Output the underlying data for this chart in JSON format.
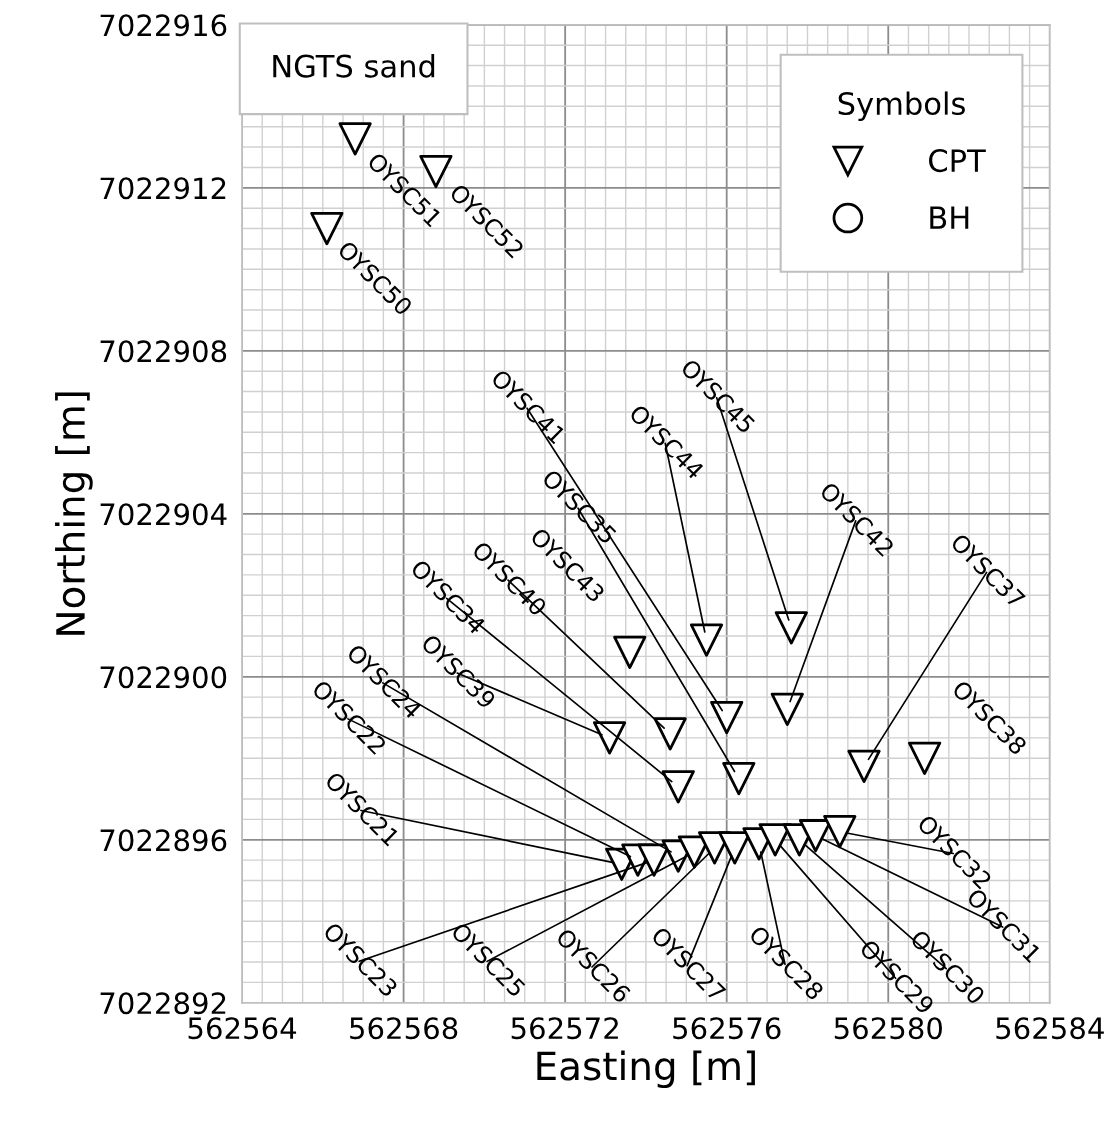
{
  "chart_data": {
    "type": "scatter",
    "xlabel": "Easting [m]",
    "ylabel": "Northing [m]",
    "legend_title": "Symbols",
    "legend": "top right",
    "grid": true,
    "xlim": [
      562564,
      562584
    ],
    "xticks": [
      562564,
      562568,
      562572,
      562576,
      562580,
      562584
    ],
    "ylim": [
      7022892,
      7022916
    ],
    "yticks": [
      7022892,
      7022896,
      7022900,
      7022904,
      7022908,
      7022912,
      7022916
    ],
    "series": [
      {
        "name": "CPT",
        "color": "#000000",
        "marker": "triangle",
        "x": [
          562573.4,
          562573.8,
          562574.2,
          562574.8,
          562575.2,
          562575.7,
          562576.2,
          562576.8,
          562577.2,
          562577.8,
          562578.2,
          562578.8,
          562574.8,
          562576.3,
          562579.4,
          562580.9,
          562573.1,
          562574.6,
          562576.0,
          562577.5,
          562573.6,
          562575.5,
          562577.6,
          562566.1,
          562566.8,
          562568.8
        ],
        "values": [
          7022895.4,
          7022895.5,
          7022895.5,
          7022895.6,
          7022895.7,
          7022895.8,
          7022895.8,
          7022895.9,
          7022896.0,
          7022896.0,
          7022896.1,
          7022896.2,
          7022897.3,
          7022897.5,
          7022897.8,
          7022898.0,
          7022898.5,
          7022898.6,
          7022899.0,
          7022899.2,
          7022900.6,
          7022900.9,
          7022901.2,
          7022911.0,
          7022913.2,
          7022912.4
        ]
      },
      {
        "name": "BH",
        "color": "#000000",
        "marker": "circle"
      }
    ],
    "annotations": [
      "NGTS sand",
      {
        "text": "OYSC21",
        "x": 562573.4,
        "y": 7022895.4
      },
      {
        "text": "OYSC22",
        "x": 562573.8,
        "y": 7022895.5
      },
      {
        "text": "OYSC23",
        "x": 562574.2,
        "y": 7022895.5
      },
      {
        "text": "OYSC24",
        "x": 562574.8,
        "y": 7022895.6
      },
      {
        "text": "OYSC25",
        "x": 562575.2,
        "y": 7022895.7
      },
      {
        "text": "OYSC26",
        "x": 562575.7,
        "y": 7022895.8
      },
      {
        "text": "OYSC27",
        "x": 562576.2,
        "y": 7022895.8
      },
      {
        "text": "OYSC28",
        "x": 562576.8,
        "y": 7022895.9
      },
      {
        "text": "OYSC29",
        "x": 562577.2,
        "y": 7022896.0
      },
      {
        "text": "OYSC30",
        "x": 562577.8,
        "y": 7022896.0
      },
      {
        "text": "OYSC31",
        "x": 562578.2,
        "y": 7022896.1
      },
      {
        "text": "OYSC32",
        "x": 562578.8,
        "y": 7022896.2
      },
      {
        "text": "OYSC34",
        "x": 562574.8,
        "y": 7022897.3
      },
      {
        "text": "OYSC35",
        "x": 562576.3,
        "y": 7022897.5
      },
      {
        "text": "OYSC37",
        "x": 562579.4,
        "y": 7022897.8
      },
      {
        "text": "OYSC38",
        "x": 562580.9,
        "y": 7022898.0
      },
      {
        "text": "OYSC39",
        "x": 562573.1,
        "y": 7022898.5
      },
      {
        "text": "OYSC40",
        "x": 562574.6,
        "y": 7022898.6
      },
      {
        "text": "OYSC41",
        "x": 562576.0,
        "y": 7022899.0
      },
      {
        "text": "OYSC42",
        "x": 562577.5,
        "y": 7022899.2
      },
      {
        "text": "OYSC43",
        "x": 562573.6,
        "y": 7022900.6
      },
      {
        "text": "OYSC44",
        "x": 562575.5,
        "y": 7022900.9
      },
      {
        "text": "OYSC45",
        "x": 562577.6,
        "y": 7022901.2
      },
      {
        "text": "OYSC50",
        "x": 562566.1,
        "y": 7022911.0
      },
      {
        "text": "OYSC51",
        "x": 562566.8,
        "y": 7022913.2
      },
      {
        "text": "OYSC52",
        "x": 562568.8,
        "y": 7022912.4
      }
    ]
  }
}
